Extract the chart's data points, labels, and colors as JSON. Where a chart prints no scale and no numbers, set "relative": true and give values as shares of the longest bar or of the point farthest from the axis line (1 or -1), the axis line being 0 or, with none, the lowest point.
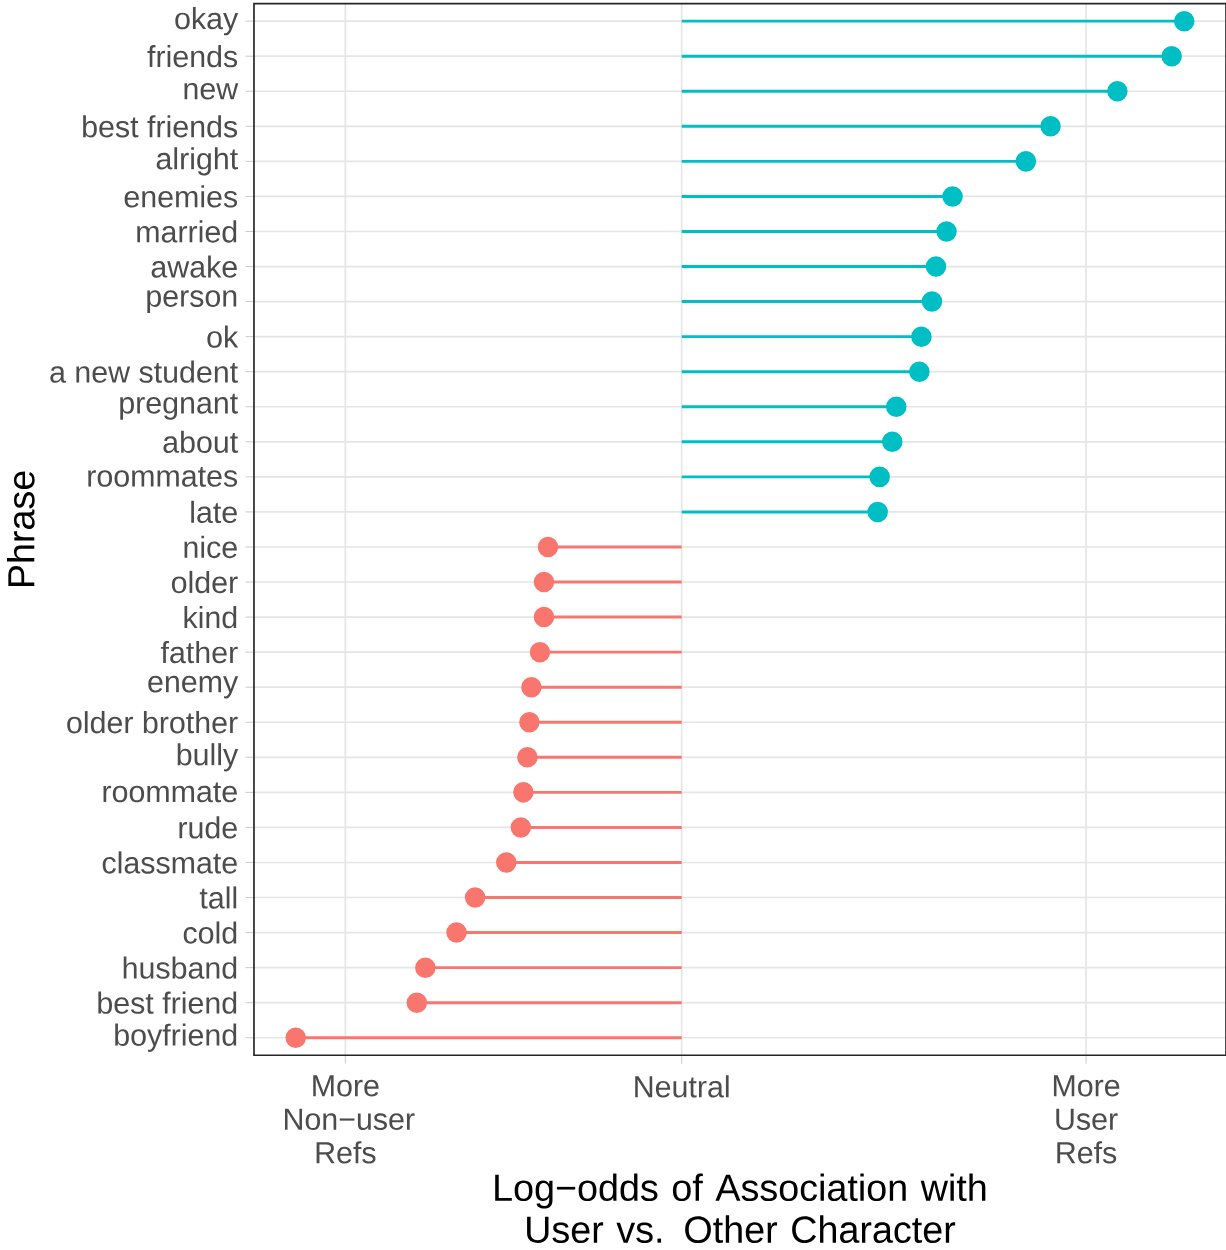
{
  "chart_data": {
    "type": "lollipop",
    "orientation": "horizontal",
    "relative": true,
    "categories": [
      "okay",
      "friends",
      "new",
      "best friends",
      "alright",
      "enemies",
      "married",
      "awake",
      "person",
      "ok",
      "a new student",
      "pregnant",
      "about",
      "roommates",
      "late",
      "nice",
      "older",
      "kind",
      "father",
      "enemy",
      "older brother",
      "bully",
      "roommate",
      "rude",
      "classmate",
      "tall",
      "cold",
      "husband",
      "best friend",
      "boyfriend"
    ],
    "values": [
      1.0,
      0.975,
      0.867,
      0.734,
      0.685,
      0.539,
      0.527,
      0.506,
      0.498,
      0.477,
      0.473,
      0.427,
      0.419,
      0.394,
      0.39,
      -0.266,
      -0.274,
      -0.274,
      -0.282,
      -0.299,
      -0.303,
      -0.307,
      -0.315,
      -0.32,
      -0.349,
      -0.411,
      -0.448,
      -0.51,
      -0.527,
      -0.768
    ],
    "colors": [
      "#00bfc4",
      "#00bfc4",
      "#00bfc4",
      "#00bfc4",
      "#00bfc4",
      "#00bfc4",
      "#00bfc4",
      "#00bfc4",
      "#00bfc4",
      "#00bfc4",
      "#00bfc4",
      "#00bfc4",
      "#00bfc4",
      "#00bfc4",
      "#00bfc4",
      "#f8766d",
      "#f8766d",
      "#f8766d",
      "#f8766d",
      "#f8766d",
      "#f8766d",
      "#f8766d",
      "#f8766d",
      "#f8766d",
      "#f8766d",
      "#f8766d",
      "#f8766d",
      "#f8766d",
      "#f8766d",
      "#f8766d"
    ],
    "annotations": [
      "More Non−user Refs",
      "Neutral",
      "More User Refs"
    ],
    "xlabel": "Log−odds of Association with User vs. Other Character",
    "ylabel": "Phrase",
    "grid": true,
    "marker": "circle"
  }
}
